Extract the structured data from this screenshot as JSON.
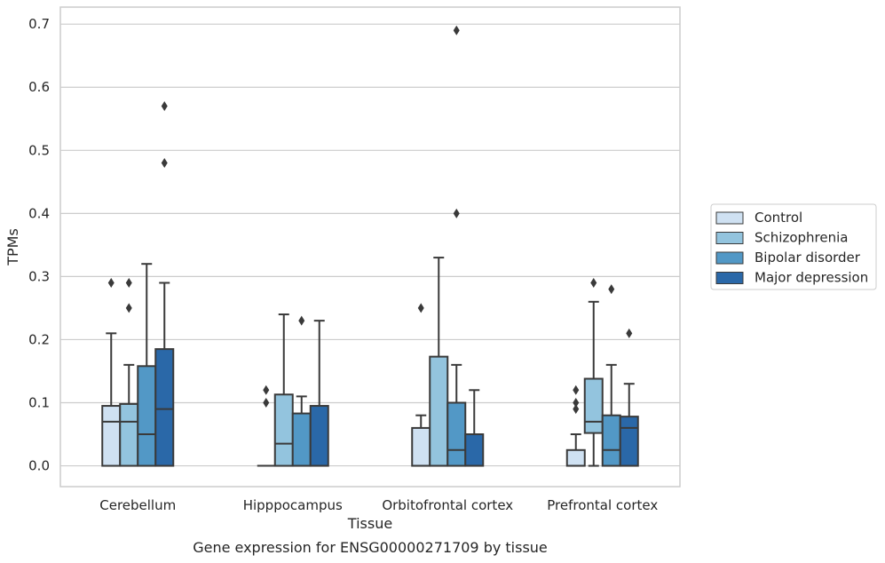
{
  "chart_data": {
    "type": "box",
    "title": "",
    "caption": "Gene expression for ENSG00000271709 by tissue",
    "xlabel": "Tissue",
    "ylabel": "TPMs",
    "ylim": [
      -0.033,
      0.727
    ],
    "yticks": [
      "0.0",
      "0.1",
      "0.2",
      "0.3",
      "0.4",
      "0.5",
      "0.6",
      "0.7"
    ],
    "ytick_values": [
      0.0,
      0.1,
      0.2,
      0.3,
      0.4,
      0.5,
      0.6,
      0.7
    ],
    "grid": "horizontal",
    "legend_position": "right",
    "categories": [
      "Cerebellum",
      "Hipppocampus",
      "Orbitofrontal cortex",
      "Prefrontal cortex"
    ],
    "series": [
      {
        "name": "Control",
        "color": "#cfe1f2",
        "boxes": [
          {
            "q1": 0.0,
            "median": 0.07,
            "q3": 0.095,
            "whisker_low": 0.0,
            "whisker_high": 0.21,
            "outliers": [
              0.29
            ]
          },
          {
            "q1": 0.0,
            "median": 0.0,
            "q3": 0.0,
            "whisker_low": 0.0,
            "whisker_high": 0.0,
            "outliers": [
              0.12,
              0.1
            ]
          },
          {
            "q1": 0.0,
            "median": 0.0,
            "q3": 0.06,
            "whisker_low": 0.0,
            "whisker_high": 0.08,
            "outliers": [
              0.25
            ]
          },
          {
            "q1": 0.0,
            "median": 0.0,
            "q3": 0.025,
            "whisker_low": 0.0,
            "whisker_high": 0.05,
            "outliers": [
              0.12,
              0.1,
              0.09
            ]
          }
        ]
      },
      {
        "name": "Schizophrenia",
        "color": "#93c4de",
        "boxes": [
          {
            "q1": 0.0,
            "median": 0.07,
            "q3": 0.098,
            "whisker_low": 0.0,
            "whisker_high": 0.16,
            "outliers": [
              0.29,
              0.25
            ]
          },
          {
            "q1": 0.0,
            "median": 0.035,
            "q3": 0.113,
            "whisker_low": 0.0,
            "whisker_high": 0.24,
            "outliers": []
          },
          {
            "q1": 0.0,
            "median": 0.0,
            "q3": 0.173,
            "whisker_low": 0.0,
            "whisker_high": 0.33,
            "outliers": []
          },
          {
            "q1": 0.052,
            "median": 0.07,
            "q3": 0.138,
            "whisker_low": 0.0,
            "whisker_high": 0.26,
            "outliers": [
              0.29
            ]
          }
        ]
      },
      {
        "name": "Bipolar disorder",
        "color": "#5298c6",
        "boxes": [
          {
            "q1": 0.0,
            "median": 0.05,
            "q3": 0.158,
            "whisker_low": 0.0,
            "whisker_high": 0.32,
            "outliers": []
          },
          {
            "q1": 0.0,
            "median": 0.0,
            "q3": 0.083,
            "whisker_low": 0.0,
            "whisker_high": 0.11,
            "outliers": [
              0.23
            ]
          },
          {
            "q1": 0.0,
            "median": 0.025,
            "q3": 0.1,
            "whisker_low": 0.0,
            "whisker_high": 0.16,
            "outliers": [
              0.69,
              0.4
            ]
          },
          {
            "q1": 0.0,
            "median": 0.025,
            "q3": 0.08,
            "whisker_low": 0.0,
            "whisker_high": 0.16,
            "outliers": [
              0.28
            ]
          }
        ]
      },
      {
        "name": "Major depression",
        "color": "#2a68a8",
        "boxes": [
          {
            "q1": 0.0,
            "median": 0.09,
            "q3": 0.185,
            "whisker_low": 0.0,
            "whisker_high": 0.29,
            "outliers": [
              0.57,
              0.48
            ]
          },
          {
            "q1": 0.0,
            "median": 0.0,
            "q3": 0.095,
            "whisker_low": 0.0,
            "whisker_high": 0.23,
            "outliers": []
          },
          {
            "q1": 0.0,
            "median": 0.0,
            "q3": 0.05,
            "whisker_low": 0.0,
            "whisker_high": 0.12,
            "outliers": []
          },
          {
            "q1": 0.0,
            "median": 0.06,
            "q3": 0.078,
            "whisker_low": 0.0,
            "whisker_high": 0.13,
            "outliers": [
              0.21
            ]
          }
        ]
      }
    ]
  }
}
